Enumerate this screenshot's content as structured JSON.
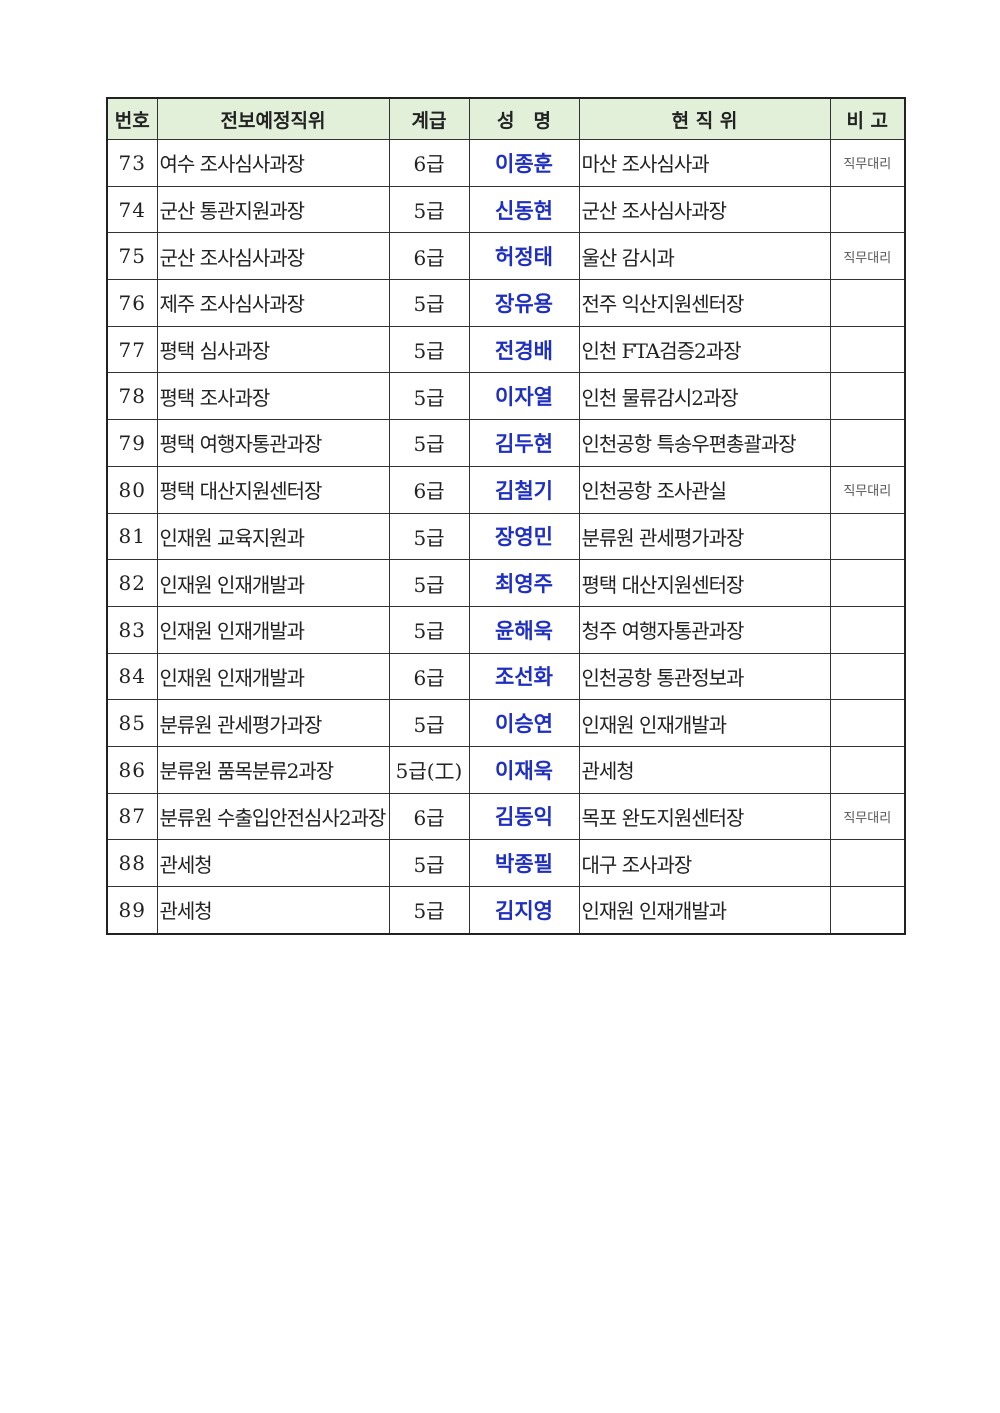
{
  "table": {
    "headers": [
      "번호",
      "전보예정직위",
      "계급",
      "성　명",
      "현 직 위",
      "비 고"
    ],
    "rows": [
      [
        "73",
        "여수 조사심사과장",
        "6급",
        "이종훈",
        "마산 조사심사과",
        "직무대리"
      ],
      [
        "74",
        "군산 통관지원과장",
        "5급",
        "신동현",
        "군산 조사심사과장",
        ""
      ],
      [
        "75",
        "군산 조사심사과장",
        "6급",
        "허정태",
        "울산 감시과",
        "직무대리"
      ],
      [
        "76",
        "제주 조사심사과장",
        "5급",
        "장유용",
        "전주 익산지원센터장",
        ""
      ],
      [
        "77",
        "평택 심사과장",
        "5급",
        "전경배",
        "인천 FTA검증2과장",
        ""
      ],
      [
        "78",
        "평택 조사과장",
        "5급",
        "이자열",
        "인천 물류감시2과장",
        ""
      ],
      [
        "79",
        "평택 여행자통관과장",
        "5급",
        "김두현",
        "인천공항 특송우편총괄과장",
        ""
      ],
      [
        "80",
        "평택 대산지원센터장",
        "6급",
        "김철기",
        "인천공항 조사관실",
        "직무대리"
      ],
      [
        "81",
        "인재원 교육지원과",
        "5급",
        "장영민",
        "분류원 관세평가과장",
        ""
      ],
      [
        "82",
        "인재원 인재개발과",
        "5급",
        "최영주",
        "평택 대산지원센터장",
        ""
      ],
      [
        "83",
        "인재원 인재개발과",
        "5급",
        "윤해욱",
        "청주 여행자통관과장",
        ""
      ],
      [
        "84",
        "인재원 인재개발과",
        "6급",
        "조선화",
        "인천공항 통관정보과",
        ""
      ],
      [
        "85",
        "분류원 관세평가과장",
        "5급",
        "이승연",
        "인재원 인재개발과",
        ""
      ],
      [
        "86",
        "분류원 품목분류2과장",
        "5급(工)",
        "이재욱",
        "관세청",
        ""
      ],
      [
        "87",
        "분류원 수출입안전심사2과장",
        "6급",
        "김동익",
        "목포 완도지원센터장",
        "직무대리"
      ],
      [
        "88",
        "관세청",
        "5급",
        "박종필",
        "대구 조사과장",
        ""
      ],
      [
        "89",
        "관세청",
        "5급",
        "김지영",
        "인재원 인재개발과",
        ""
      ]
    ]
  },
  "colors": {
    "header_bg": "#e2f0d9",
    "name_text": "#1f2fbf"
  }
}
